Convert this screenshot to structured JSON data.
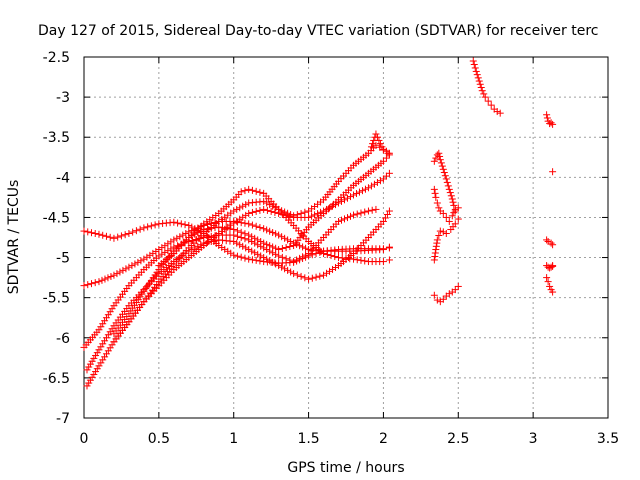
{
  "chart_data": {
    "type": "scatter",
    "title": "Day 127 of 2015, Sidereal Day-to-day VTEC variation (SDTVAR) for receiver terc",
    "xlabel": "GPS time / hours",
    "ylabel": "SDTVAR / TECUs",
    "xlim": [
      0,
      3.5
    ],
    "ylim": [
      -7,
      -2.5
    ],
    "xticks": [
      0,
      0.5,
      1,
      1.5,
      2,
      2.5,
      3,
      3.5
    ],
    "yticks": [
      -7,
      -6.5,
      -6,
      -5.5,
      -5,
      -4.5,
      -4,
      -3.5,
      -3,
      -2.5
    ],
    "xtick_labels": [
      "0",
      "0.5",
      "1",
      "1.5",
      "2",
      "2.5",
      "3",
      "3.5"
    ],
    "ytick_labels": [
      "-7",
      "-6.5",
      "-6",
      "-5.5",
      "-5",
      "-4.5",
      "-4",
      "-3.5",
      "-3",
      "-2.5"
    ],
    "grid": true,
    "marker": "+",
    "color": "#ff0000",
    "series": [
      {
        "name": "s1",
        "x": [
          0,
          0.1,
          0.2,
          0.3,
          0.4,
          0.5,
          0.6,
          0.7,
          0.8,
          0.9,
          1.0,
          1.1,
          1.2,
          1.3,
          1.4,
          1.5,
          1.6,
          1.7,
          1.8,
          1.9,
          2.0,
          2.04
        ],
        "y": [
          -4.67,
          -4.71,
          -4.76,
          -4.7,
          -4.63,
          -4.58,
          -4.56,
          -4.6,
          -4.7,
          -4.85,
          -4.97,
          -5.02,
          -5.05,
          -5.07,
          -5.06,
          -4.98,
          -4.92,
          -4.9,
          -4.89,
          -4.89,
          -4.89,
          -4.87
        ]
      },
      {
        "name": "s2",
        "x": [
          0,
          0.1,
          0.2,
          0.3,
          0.4,
          0.5,
          0.6,
          0.7,
          0.8,
          0.9,
          1.0,
          1.1,
          1.2,
          1.3,
          1.4,
          1.5,
          1.6,
          1.7,
          1.8,
          1.9,
          2.0,
          2.04
        ],
        "y": [
          -5.35,
          -5.3,
          -5.22,
          -5.12,
          -5.02,
          -4.9,
          -4.78,
          -4.68,
          -4.6,
          -4.55,
          -4.55,
          -4.58,
          -4.64,
          -4.72,
          -4.82,
          -4.9,
          -4.92,
          -4.92,
          -4.92,
          -4.91,
          -4.9,
          -4.88
        ]
      },
      {
        "name": "s3",
        "x": [
          0,
          0.1,
          0.2,
          0.3,
          0.4,
          0.5,
          0.6,
          0.7,
          0.8,
          0.9,
          1.0,
          1.1,
          1.2,
          1.3,
          1.4,
          1.5,
          1.6,
          1.7,
          1.8,
          1.9,
          1.95
        ],
        "y": [
          -6.12,
          -5.9,
          -5.6,
          -5.35,
          -5.15,
          -4.98,
          -4.87,
          -4.8,
          -4.75,
          -4.72,
          -4.72,
          -4.78,
          -4.88,
          -4.98,
          -5.05,
          -4.95,
          -4.75,
          -4.55,
          -4.47,
          -4.42,
          -4.4
        ]
      },
      {
        "name": "s4",
        "x": [
          0.02,
          0.1,
          0.2,
          0.3,
          0.4,
          0.5,
          0.6,
          0.7,
          0.8,
          0.9,
          1.0,
          1.1,
          1.2,
          1.3,
          1.4,
          1.5,
          1.6,
          1.7,
          1.8,
          1.9,
          2.0,
          2.04
        ],
        "y": [
          -6.4,
          -6.15,
          -5.85,
          -5.6,
          -5.4,
          -5.2,
          -5.05,
          -4.92,
          -4.82,
          -4.78,
          -4.8,
          -4.9,
          -5.0,
          -5.1,
          -5.2,
          -5.27,
          -5.22,
          -5.1,
          -4.95,
          -4.75,
          -4.55,
          -4.42
        ]
      },
      {
        "name": "s5",
        "x": [
          0.02,
          0.1,
          0.2,
          0.3,
          0.4,
          0.5,
          0.6,
          0.7,
          0.8,
          0.9,
          1.0,
          1.1,
          1.2,
          1.3,
          1.4,
          1.5,
          1.6,
          1.7,
          1.8,
          1.9,
          2.0,
          2.04
        ],
        "y": [
          -6.6,
          -6.35,
          -6.05,
          -5.8,
          -5.55,
          -5.35,
          -5.15,
          -5.0,
          -4.85,
          -4.7,
          -4.57,
          -4.45,
          -4.4,
          -4.45,
          -4.5,
          -4.5,
          -4.42,
          -4.32,
          -4.22,
          -4.13,
          -4.02,
          -3.95
        ]
      },
      {
        "name": "s6",
        "x": [
          0.2,
          0.3,
          0.4,
          0.5,
          0.6,
          0.7,
          0.8,
          0.9,
          1.0,
          1.1,
          1.2,
          1.3,
          1.4,
          1.5,
          1.6,
          1.7,
          1.8,
          1.9,
          1.95,
          2.0,
          2.04
        ],
        "y": [
          -6.05,
          -5.8,
          -5.55,
          -5.3,
          -5.08,
          -4.88,
          -4.7,
          -4.55,
          -4.42,
          -4.32,
          -4.3,
          -4.4,
          -4.48,
          -4.42,
          -4.28,
          -4.05,
          -3.85,
          -3.7,
          -3.6,
          -3.65,
          -3.7
        ]
      },
      {
        "name": "s7",
        "x": [
          0.5,
          0.6,
          0.7,
          0.8,
          0.9,
          1.0,
          1.05,
          1.1,
          1.2,
          1.3,
          1.4,
          1.5,
          1.6,
          1.7,
          1.8,
          1.9,
          2.0,
          2.04
        ],
        "y": [
          -5.1,
          -4.95,
          -4.75,
          -4.58,
          -4.45,
          -4.28,
          -4.18,
          -4.15,
          -4.2,
          -4.4,
          -4.6,
          -4.8,
          -4.95,
          -5.0,
          -5.02,
          -5.05,
          -5.05,
          -5.03
        ]
      },
      {
        "name": "s8",
        "x": [
          0.2,
          0.3,
          0.4,
          0.5,
          0.6,
          0.7,
          0.8,
          0.9,
          1.0,
          1.1,
          1.2,
          1.3,
          1.4,
          1.5,
          1.6,
          1.7,
          1.8,
          1.9,
          2.0,
          2.04
        ],
        "y": [
          -5.95,
          -5.7,
          -5.42,
          -5.15,
          -4.92,
          -4.75,
          -4.65,
          -4.62,
          -4.65,
          -4.72,
          -4.82,
          -4.9,
          -4.85,
          -4.62,
          -4.45,
          -4.28,
          -4.1,
          -3.95,
          -3.8,
          -3.72
        ]
      },
      {
        "name": "s9",
        "x": [
          1.92,
          1.95,
          1.98,
          2.0,
          2.03
        ],
        "y": [
          -3.62,
          -3.46,
          -3.58,
          -3.66,
          -3.7
        ]
      },
      {
        "name": "s10",
        "x": [
          2.34,
          2.35,
          2.36,
          2.37,
          2.38,
          2.4,
          2.42,
          2.44,
          2.46,
          2.47,
          2.48
        ],
        "y": [
          -3.8,
          -3.76,
          -3.72,
          -3.7,
          -3.78,
          -3.9,
          -4.02,
          -4.15,
          -4.27,
          -4.35,
          -4.42
        ]
      },
      {
        "name": "s11",
        "x": [
          2.34,
          2.35,
          2.36,
          2.37,
          2.38,
          2.4,
          2.42,
          2.44,
          2.46,
          2.48,
          2.5
        ],
        "y": [
          -4.15,
          -4.25,
          -4.32,
          -4.38,
          -4.42,
          -4.45,
          -4.5,
          -4.55,
          -4.48,
          -4.4,
          -4.38
        ]
      },
      {
        "name": "s12",
        "x": [
          2.34,
          2.35,
          2.36,
          2.38,
          2.4,
          2.42,
          2.45,
          2.48,
          2.5
        ],
        "y": [
          -5.03,
          -4.9,
          -4.78,
          -4.67,
          -4.68,
          -4.7,
          -4.65,
          -4.58,
          -4.52
        ]
      },
      {
        "name": "s13",
        "x": [
          2.34,
          2.36,
          2.38,
          2.4,
          2.42,
          2.44,
          2.46,
          2.48,
          2.5
        ],
        "y": [
          -5.47,
          -5.53,
          -5.55,
          -5.52,
          -5.48,
          -5.45,
          -5.43,
          -5.4,
          -5.36
        ]
      },
      {
        "name": "s14",
        "x": [
          2.6,
          2.62,
          2.64,
          2.66,
          2.68,
          2.7,
          2.72,
          2.74,
          2.76,
          2.78
        ],
        "y": [
          -2.55,
          -2.68,
          -2.8,
          -2.92,
          -3.0,
          -3.05,
          -3.1,
          -3.15,
          -3.18,
          -3.2
        ]
      },
      {
        "name": "s15",
        "x": [
          3.09,
          3.1,
          3.11,
          3.12,
          3.13
        ],
        "y": [
          -3.22,
          -3.3,
          -3.33,
          -3.32,
          -3.34
        ]
      },
      {
        "name": "s16",
        "x": [
          3.13
        ],
        "y": [
          -3.93
        ]
      },
      {
        "name": "s17",
        "x": [
          3.09,
          3.1,
          3.12,
          3.13
        ],
        "y": [
          -4.78,
          -4.8,
          -4.82,
          -4.84
        ]
      },
      {
        "name": "s18",
        "x": [
          3.09,
          3.1,
          3.11,
          3.12,
          3.13,
          3.13
        ],
        "y": [
          -5.1,
          -5.12,
          -5.13,
          -5.12,
          -5.11,
          -5.1
        ]
      },
      {
        "name": "s19",
        "x": [
          3.09,
          3.1,
          3.11,
          3.12,
          3.13
        ],
        "y": [
          -5.25,
          -5.3,
          -5.36,
          -5.4,
          -5.43
        ]
      }
    ]
  }
}
